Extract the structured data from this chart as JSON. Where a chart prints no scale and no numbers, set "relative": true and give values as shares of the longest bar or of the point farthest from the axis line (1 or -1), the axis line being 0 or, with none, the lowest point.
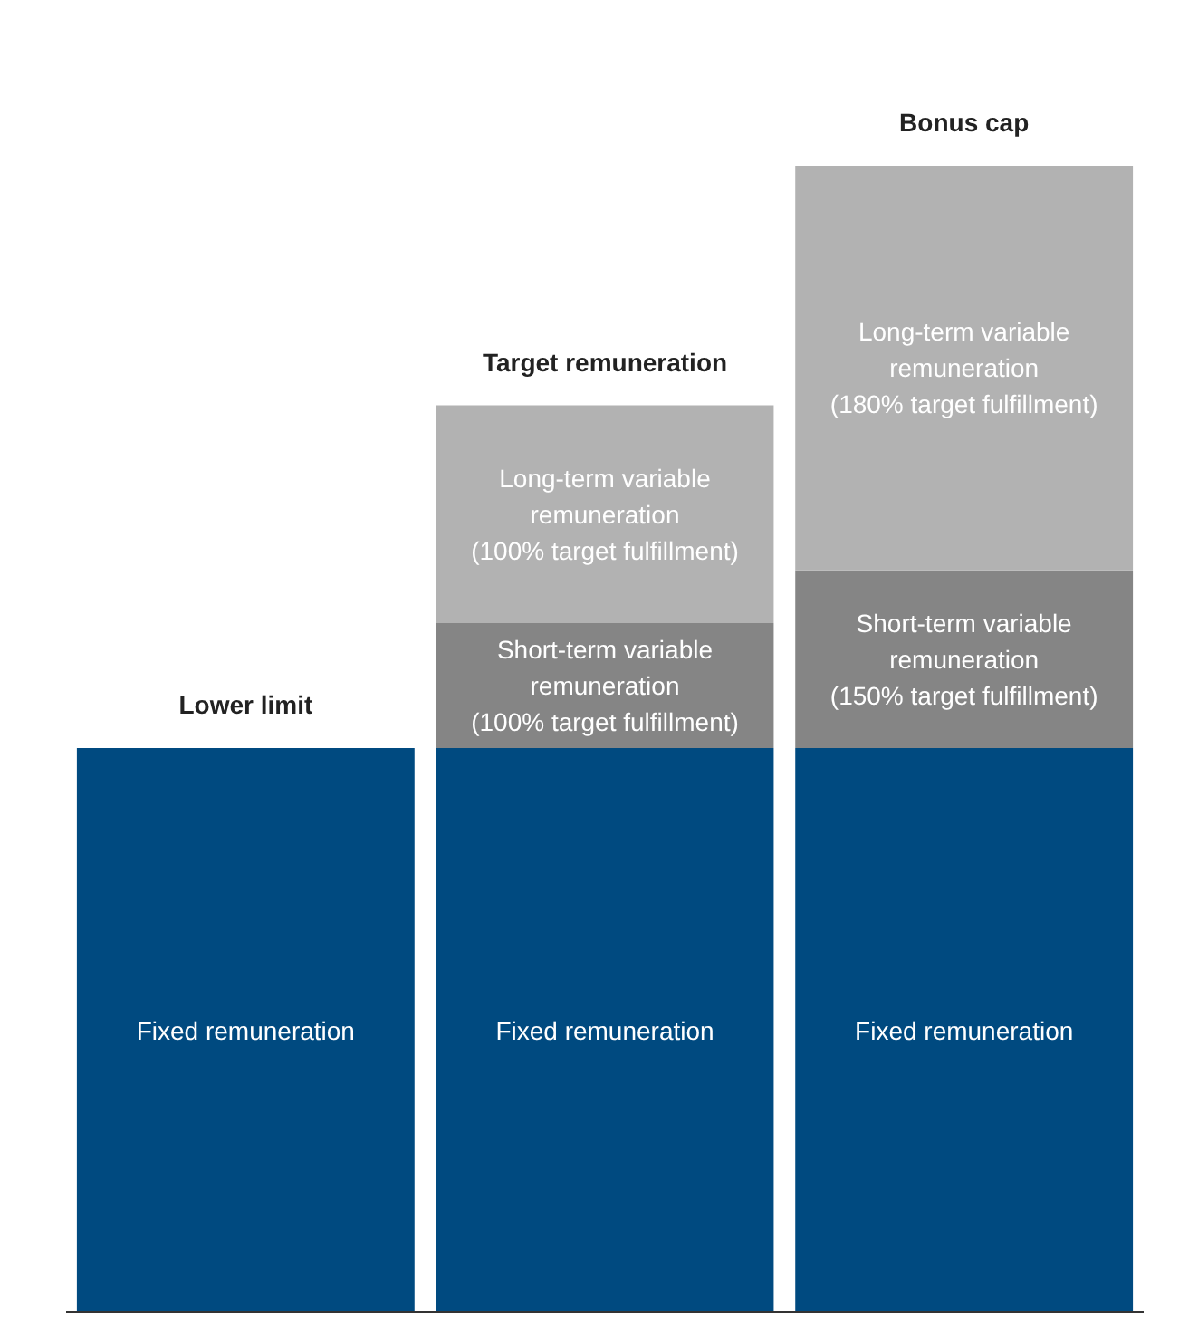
{
  "chart_data": {
    "type": "bar",
    "stacked": true,
    "relative": true,
    "categories": [
      "Lower limit",
      "Target remuneration",
      "Bonus cap"
    ],
    "series": [
      {
        "color": "#004a80",
        "values": [
          0.492,
          0.492,
          0.492
        ]
      },
      {
        "color": "#858585",
        "values": [
          null,
          0.109,
          0.155
        ]
      },
      {
        "color": "#b2b2b2",
        "values": [
          null,
          0.19,
          0.353
        ]
      }
    ],
    "annotations": [
      "Fixed remuneration",
      "Fixed remuneration",
      "Fixed remuneration",
      "Short-term variable\nremuneration\n(100% target fulfillment)",
      "Short-term variable\nremuneration\n(150% target fulfillment)",
      "Long-term variable\nremuneration\n(100% target fulfillment)",
      "Long-term variable\nremuneration\n(180% target fulfillment)"
    ]
  }
}
